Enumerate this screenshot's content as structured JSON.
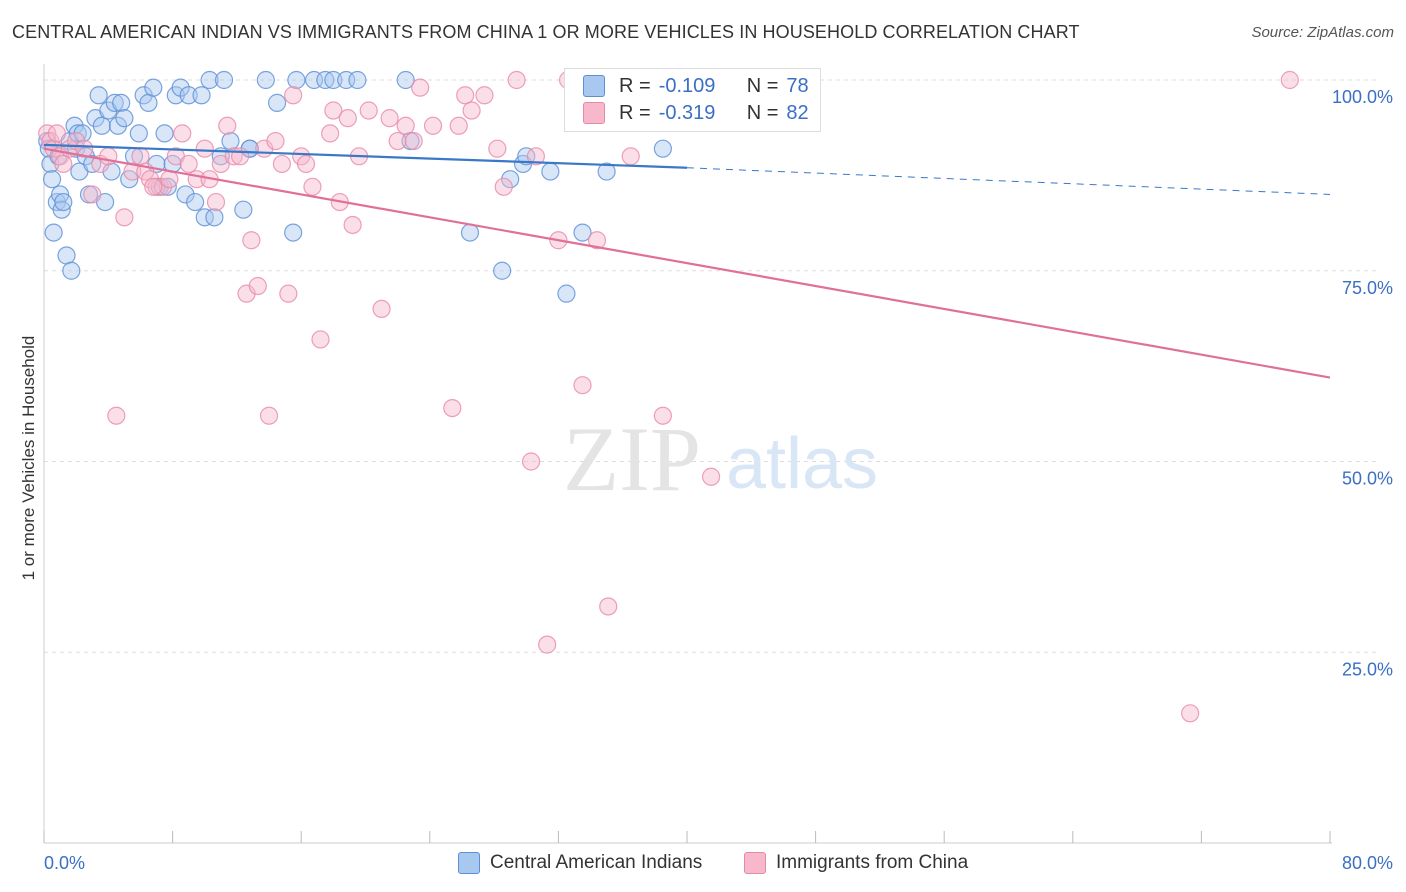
{
  "title": "CENTRAL AMERICAN INDIAN VS IMMIGRANTS FROM CHINA 1 OR MORE VEHICLES IN HOUSEHOLD CORRELATION CHART",
  "source": "Source: ZipAtlas.com",
  "watermark": {
    "zip": "ZIP",
    "atlas": "atlas"
  },
  "legend": {
    "series1": {
      "r_label": "R =",
      "r_value": "-0.109",
      "n_label": "N =",
      "n_value": "78"
    },
    "series2": {
      "r_label": "R =",
      "r_value": "-0.319",
      "n_label": "N =",
      "n_value": "82"
    }
  },
  "colors": {
    "blue_fill": "#a8c8f0",
    "blue_stroke": "#5b8fd6",
    "blue_line": "#3a78c8",
    "pink_fill": "#f7b8cc",
    "pink_stroke": "#e888a8",
    "pink_line": "#e0709a",
    "tick_label": "#3a6fc4",
    "grid": "#dddddd"
  },
  "chart_data": {
    "type": "scatter",
    "title": "CENTRAL AMERICAN INDIAN VS IMMIGRANTS FROM CHINA 1 OR MORE VEHICLES IN HOUSEHOLD CORRELATION CHART",
    "xlabel": "",
    "ylabel": "1 or more Vehicles in Household",
    "xlim": [
      0,
      80
    ],
    "ylim": [
      0,
      105
    ],
    "x_tick_labels": [
      "0.0%",
      "80.0%"
    ],
    "y_ticks": [
      25,
      50,
      75,
      100
    ],
    "y_tick_labels": [
      "25.0%",
      "50.0%",
      "75.0%",
      "100.0%"
    ],
    "series": [
      {
        "name": "Central American Indians",
        "color": "blue",
        "trend": {
          "x0": 0,
          "y0": 91.5,
          "x1": 40,
          "y1": 88.5,
          "dash_to_x": 80,
          "dash_to_y": 85.0
        },
        "points": [
          [
            0.2,
            92
          ],
          [
            0.3,
            91
          ],
          [
            0.4,
            89
          ],
          [
            0.5,
            87
          ],
          [
            0.6,
            80
          ],
          [
            0.8,
            84
          ],
          [
            0.9,
            90
          ],
          [
            1.0,
            85
          ],
          [
            1.1,
            83
          ],
          [
            1.2,
            84
          ],
          [
            1.4,
            77
          ],
          [
            1.6,
            92
          ],
          [
            1.7,
            75
          ],
          [
            1.9,
            94
          ],
          [
            2.0,
            91
          ],
          [
            2.1,
            93
          ],
          [
            2.2,
            88
          ],
          [
            2.4,
            93
          ],
          [
            2.6,
            90
          ],
          [
            2.8,
            85
          ],
          [
            3.0,
            89
          ],
          [
            3.2,
            95
          ],
          [
            3.4,
            98
          ],
          [
            3.6,
            94
          ],
          [
            3.8,
            84
          ],
          [
            4.0,
            96
          ],
          [
            4.2,
            88
          ],
          [
            4.4,
            97
          ],
          [
            4.6,
            94
          ],
          [
            4.8,
            97
          ],
          [
            5.0,
            95
          ],
          [
            5.3,
            87
          ],
          [
            5.6,
            90
          ],
          [
            5.9,
            93
          ],
          [
            6.2,
            98
          ],
          [
            6.5,
            97
          ],
          [
            6.8,
            99
          ],
          [
            7.0,
            89
          ],
          [
            7.2,
            86
          ],
          [
            7.5,
            93
          ],
          [
            7.7,
            86
          ],
          [
            8.0,
            89
          ],
          [
            8.2,
            98
          ],
          [
            8.5,
            99
          ],
          [
            8.8,
            85
          ],
          [
            9.0,
            98
          ],
          [
            9.4,
            84
          ],
          [
            9.8,
            98
          ],
          [
            10.0,
            82
          ],
          [
            10.3,
            100
          ],
          [
            10.6,
            82
          ],
          [
            11.0,
            90
          ],
          [
            11.2,
            100
          ],
          [
            11.6,
            92
          ],
          [
            12.4,
            83
          ],
          [
            12.8,
            91
          ],
          [
            13.8,
            100
          ],
          [
            14.5,
            97
          ],
          [
            15.5,
            80
          ],
          [
            15.7,
            100
          ],
          [
            16.8,
            100
          ],
          [
            17.5,
            100
          ],
          [
            18.0,
            100
          ],
          [
            18.8,
            100
          ],
          [
            19.5,
            100
          ],
          [
            22.5,
            100
          ],
          [
            22.8,
            92
          ],
          [
            26.5,
            80
          ],
          [
            28.5,
            75
          ],
          [
            29.0,
            87
          ],
          [
            29.8,
            89
          ],
          [
            30.0,
            90
          ],
          [
            31.5,
            88
          ],
          [
            32.5,
            72
          ],
          [
            33.5,
            80
          ],
          [
            35.0,
            88
          ],
          [
            38.5,
            91
          ],
          [
            12.8,
            91
          ]
        ]
      },
      {
        "name": "Immigrants from China",
        "color": "pink",
        "trend": {
          "x0": 0,
          "y0": 91.0,
          "x1": 80,
          "y1": 61.0
        },
        "points": [
          [
            0.2,
            93
          ],
          [
            0.4,
            92
          ],
          [
            0.6,
            91
          ],
          [
            0.8,
            93
          ],
          [
            1.0,
            90
          ],
          [
            1.2,
            89
          ],
          [
            1.6,
            91
          ],
          [
            2.0,
            92
          ],
          [
            2.5,
            91
          ],
          [
            3.0,
            85
          ],
          [
            3.5,
            89
          ],
          [
            4.0,
            90
          ],
          [
            4.5,
            56
          ],
          [
            5.0,
            82
          ],
          [
            5.5,
            88
          ],
          [
            6.0,
            90
          ],
          [
            6.3,
            88
          ],
          [
            6.6,
            87
          ],
          [
            7.0,
            86
          ],
          [
            7.4,
            86
          ],
          [
            7.8,
            87
          ],
          [
            8.2,
            90
          ],
          [
            8.6,
            93
          ],
          [
            9.0,
            89
          ],
          [
            9.5,
            87
          ],
          [
            10.0,
            91
          ],
          [
            10.3,
            87
          ],
          [
            10.7,
            84
          ],
          [
            11.0,
            89
          ],
          [
            11.4,
            94
          ],
          [
            11.8,
            90
          ],
          [
            12.2,
            90
          ],
          [
            12.6,
            72
          ],
          [
            12.9,
            79
          ],
          [
            13.3,
            73
          ],
          [
            13.7,
            91
          ],
          [
            14.0,
            56
          ],
          [
            14.4,
            92
          ],
          [
            14.8,
            89
          ],
          [
            15.2,
            72
          ],
          [
            15.5,
            98
          ],
          [
            16.0,
            90
          ],
          [
            16.3,
            89
          ],
          [
            16.7,
            86
          ],
          [
            17.2,
            66
          ],
          [
            17.8,
            93
          ],
          [
            18.0,
            96
          ],
          [
            18.4,
            84
          ],
          [
            18.9,
            95
          ],
          [
            19.2,
            81
          ],
          [
            19.6,
            90
          ],
          [
            20.2,
            96
          ],
          [
            21.0,
            70
          ],
          [
            21.5,
            95
          ],
          [
            22.0,
            92
          ],
          [
            22.5,
            94
          ],
          [
            23.0,
            92
          ],
          [
            23.4,
            99
          ],
          [
            25.4,
            57
          ],
          [
            25.8,
            94
          ],
          [
            26.2,
            98
          ],
          [
            26.6,
            96
          ],
          [
            27.4,
            98
          ],
          [
            28.2,
            91
          ],
          [
            28.6,
            86
          ],
          [
            29.4,
            100
          ],
          [
            30.3,
            50
          ],
          [
            30.6,
            90
          ],
          [
            31.3,
            26
          ],
          [
            32.0,
            79
          ],
          [
            32.6,
            100
          ],
          [
            33.5,
            60
          ],
          [
            34.0,
            100
          ],
          [
            34.4,
            79
          ],
          [
            35.1,
            31
          ],
          [
            36.5,
            90
          ],
          [
            38.5,
            56
          ],
          [
            41.5,
            48
          ],
          [
            71.3,
            17
          ],
          [
            77.5,
            100
          ],
          [
            6.8,
            86
          ],
          [
            24.2,
            94
          ]
        ]
      }
    ]
  }
}
